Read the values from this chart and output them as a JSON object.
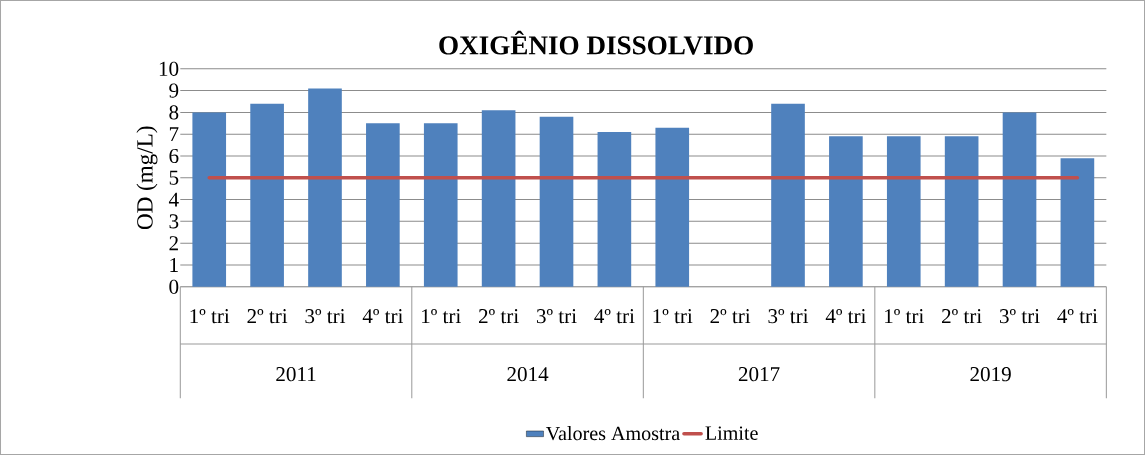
{
  "chart_data": {
    "type": "bar",
    "title": "OXIGÊNIO DISSOLVIDO",
    "ylabel": "OD (mg/L)",
    "categories": [
      "1º tri",
      "2º tri",
      "3º tri",
      "4º tri",
      "1º tri",
      "2º tri",
      "3º tri",
      "4º tri",
      "1º tri",
      "2º tri",
      "3º tri",
      "4º tri",
      "1º tri",
      "2º tri",
      "3º tri",
      "4º tri"
    ],
    "series": [
      {
        "name": "Valores Amostra",
        "color": "#4f81bd",
        "values": [
          8.0,
          8.4,
          9.1,
          7.5,
          7.5,
          8.1,
          7.8,
          7.1,
          7.3,
          null,
          8.4,
          6.9,
          6.9,
          6.9,
          8.0,
          5.9
        ]
      },
      {
        "name": "Limite",
        "type": "line",
        "color": "#c0504d",
        "values": [
          5,
          5,
          5,
          5,
          5,
          5,
          5,
          5,
          5,
          5,
          5,
          5,
          5,
          5,
          5,
          5
        ]
      }
    ],
    "annotations": [
      "2011",
      "2014",
      "2017",
      "2019"
    ],
    "ylim": [
      0,
      10
    ],
    "yticks": [
      0,
      1,
      2,
      3,
      4,
      5,
      6,
      7,
      8,
      9,
      10
    ],
    "grid": "y",
    "legend": "bottom"
  }
}
